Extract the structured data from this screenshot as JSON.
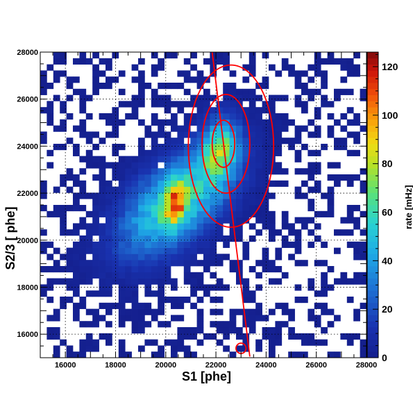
{
  "chart_data": {
    "type": "heatmap",
    "title": "",
    "xlabel": "S1 [phe]",
    "ylabel": "S2/3 [ phe]",
    "zlabel": "rate [mHz]",
    "xlim": [
      15000,
      28000
    ],
    "ylim": [
      15000,
      28000
    ],
    "zlim": [
      0,
      126
    ],
    "x_ticks": [
      "16000",
      "18000",
      "20000",
      "22000",
      "24000",
      "26000",
      "28000"
    ],
    "y_ticks": [
      "16000",
      "18000",
      "20000",
      "22000",
      "24000",
      "26000",
      "28000"
    ],
    "z_ticks": [
      "0",
      "20",
      "40",
      "60",
      "80",
      "100",
      "120"
    ],
    "grid": true,
    "colormap": "rainbow",
    "bins": [
      50,
      50
    ],
    "density_peaks": [
      {
        "x": 20400,
        "y": 21600,
        "sx": 1500,
        "sy": 1500,
        "rho": 0.55,
        "peak_mHz": 60
      },
      {
        "x": 20400,
        "y": 21600,
        "sx": 280,
        "sy": 620,
        "rho": 0.2,
        "peak_mHz": 60
      },
      {
        "x": 22150,
        "y": 23850,
        "sx": 520,
        "sy": 900,
        "rho": 0.15,
        "peak_mHz": 60
      }
    ],
    "background_rate_mHz": 3,
    "ellipses": [
      {
        "x": 22300,
        "y": 24100,
        "rx": 450,
        "ry": 1000
      },
      {
        "x": 22400,
        "y": 24100,
        "rx": 950,
        "ry": 2100
      },
      {
        "x": 22600,
        "y": 24000,
        "rx": 1700,
        "ry": 3450
      },
      {
        "x": 23000,
        "y": 15400,
        "rx": 200,
        "ry": 220
      }
    ],
    "line": {
      "x": [
        21850,
        23350
      ],
      "y": [
        28000,
        15050
      ]
    },
    "colors": {
      "overlay": "#ff0000"
    }
  }
}
